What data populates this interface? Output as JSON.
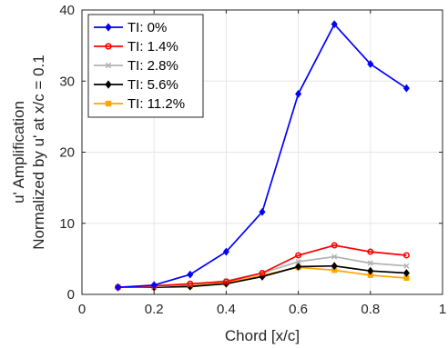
{
  "chart_data": {
    "type": "line",
    "title": "",
    "xlabel": "Chord [x/c]",
    "ylabel_lines": [
      "u' Amplification",
      "Normalized by u' at x/c = 0.1"
    ],
    "xlim": [
      0,
      1
    ],
    "ylim": [
      0,
      40
    ],
    "xticks": [
      0,
      0.2,
      0.4,
      0.6,
      0.8,
      1
    ],
    "xtick_labels": [
      "0",
      "0.2",
      "0.4",
      "0.6",
      "0.8",
      "1"
    ],
    "yticks": [
      0,
      10,
      20,
      30,
      40
    ],
    "ytick_labels": [
      "0",
      "10",
      "20",
      "30",
      "40"
    ],
    "grid": true,
    "legend_position": "top-left",
    "x": [
      0.1,
      0.2,
      0.3,
      0.4,
      0.5,
      0.6,
      0.7,
      0.8,
      0.9
    ],
    "series": [
      {
        "name": "TI: 0%",
        "color": "#0000ff",
        "marker": "diamond",
        "values": [
          1.0,
          1.3,
          2.8,
          6.0,
          11.6,
          28.2,
          38.0,
          32.4,
          29.0
        ]
      },
      {
        "name": "TI: 1.4%",
        "color": "#ff0000",
        "marker": "circle",
        "values": [
          1.0,
          1.2,
          1.5,
          1.8,
          3.0,
          5.5,
          6.9,
          6.0,
          5.5
        ]
      },
      {
        "name": "TI: 2.8%",
        "color": "#b3b3b3",
        "marker": "x",
        "values": [
          1.0,
          1.1,
          1.4,
          1.9,
          3.0,
          4.6,
          5.3,
          4.4,
          4.0
        ]
      },
      {
        "name": "TI: 5.6%",
        "color": "#000000",
        "marker": "diamond",
        "values": [
          1.0,
          1.0,
          1.1,
          1.5,
          2.5,
          3.9,
          4.0,
          3.3,
          3.0
        ]
      },
      {
        "name": "TI: 11.2%",
        "color": "#ffa500",
        "marker": "square",
        "values": [
          1.0,
          1.0,
          1.2,
          1.6,
          2.7,
          3.8,
          3.4,
          2.7,
          2.3
        ]
      }
    ]
  }
}
